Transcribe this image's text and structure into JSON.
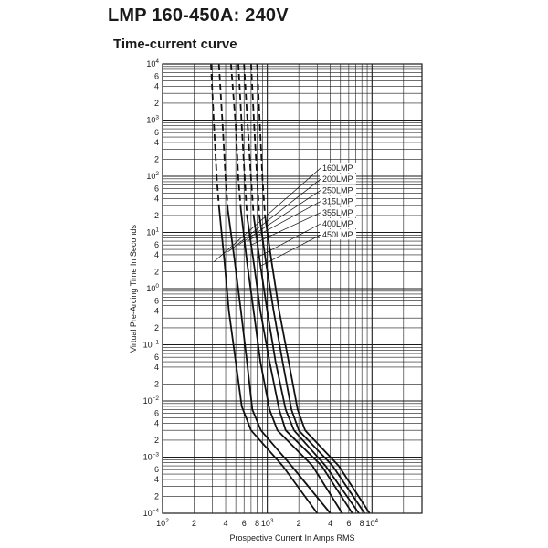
{
  "title": "LMP 160-450A: 240V",
  "subtitle": "Time-current curve",
  "chart_data": {
    "type": "line",
    "title": "LMP 160-450A: 240V",
    "subtitle": "Time-current curve",
    "xlabel": "Prospective Current In Amps RMS",
    "ylabel": "Virtual Pre-Arcing Time In Seconds",
    "x_scale": "log",
    "y_scale": "log",
    "xlim": [
      100,
      30000
    ],
    "ylim": [
      0.0001,
      10000
    ],
    "grid": true,
    "x_ticks": [
      {
        "value": 100,
        "base": "10",
        "exp": "2"
      },
      {
        "value": 200,
        "label": "2"
      },
      {
        "value": 400,
        "label": "4"
      },
      {
        "value": 600,
        "label": "6"
      },
      {
        "value": 800,
        "label": "8"
      },
      {
        "value": 1000,
        "base": "10",
        "exp": "3"
      },
      {
        "value": 2000,
        "label": "2"
      },
      {
        "value": 4000,
        "label": "4"
      },
      {
        "value": 6000,
        "label": "6"
      },
      {
        "value": 8000,
        "label": "8"
      },
      {
        "value": 10000,
        "base": "10",
        "exp": "4"
      }
    ],
    "y_ticks": [
      {
        "value": 0.0001,
        "base": "10",
        "exp": "−4"
      },
      {
        "value": 0.0002,
        "label": "2"
      },
      {
        "value": 0.0004,
        "label": "4"
      },
      {
        "value": 0.0006,
        "label": "6"
      },
      {
        "value": 0.001,
        "base": "10",
        "exp": "−3"
      },
      {
        "value": 0.002,
        "label": "2"
      },
      {
        "value": 0.004,
        "label": "4"
      },
      {
        "value": 0.006,
        "label": "6"
      },
      {
        "value": 0.01,
        "base": "10",
        "exp": "−2"
      },
      {
        "value": 0.02,
        "label": "2"
      },
      {
        "value": 0.04,
        "label": "4"
      },
      {
        "value": 0.06,
        "label": "6"
      },
      {
        "value": 0.1,
        "base": "10",
        "exp": "−1"
      },
      {
        "value": 0.2,
        "label": "2"
      },
      {
        "value": 0.4,
        "label": "4"
      },
      {
        "value": 0.6,
        "label": "6"
      },
      {
        "value": 1,
        "base": "10",
        "exp": "0"
      },
      {
        "value": 2,
        "label": "2"
      },
      {
        "value": 4,
        "label": "4"
      },
      {
        "value": 6,
        "label": "6"
      },
      {
        "value": 10,
        "base": "10",
        "exp": "1"
      },
      {
        "value": 20,
        "label": "2"
      },
      {
        "value": 40,
        "label": "4"
      },
      {
        "value": 60,
        "label": "6"
      },
      {
        "value": 100,
        "base": "10",
        "exp": "2"
      },
      {
        "value": 200,
        "label": "2"
      },
      {
        "value": 400,
        "label": "4"
      },
      {
        "value": 600,
        "label": "6"
      },
      {
        "value": 1000,
        "base": "10",
        "exp": "3"
      },
      {
        "value": 2000,
        "label": "2"
      },
      {
        "value": 4000,
        "label": "4"
      },
      {
        "value": 6000,
        "label": "6"
      },
      {
        "value": 10000,
        "base": "10",
        "exp": "4"
      }
    ],
    "series": [
      {
        "name": "160LMP",
        "dashed": [
          [
            290,
            10000
          ],
          [
            310,
            800
          ],
          [
            330,
            90
          ],
          [
            345,
            30
          ]
        ],
        "solid": [
          [
            345,
            30
          ],
          [
            390,
            3
          ],
          [
            430,
            0.4
          ],
          [
            500,
            0.05
          ],
          [
            570,
            0.008
          ],
          [
            700,
            0.003
          ],
          [
            1400,
            0.0007
          ],
          [
            3000,
            0.0001
          ]
        ]
      },
      {
        "name": "200LMP",
        "dashed": [
          [
            345,
            10000
          ],
          [
            375,
            800
          ],
          [
            400,
            90
          ],
          [
            420,
            25
          ]
        ],
        "solid": [
          [
            420,
            25
          ],
          [
            490,
            3
          ],
          [
            560,
            0.4
          ],
          [
            640,
            0.05
          ],
          [
            720,
            0.007
          ],
          [
            870,
            0.003
          ],
          [
            1700,
            0.0007
          ],
          [
            4000,
            0.0001
          ]
        ]
      },
      {
        "name": "250LMP",
        "dashed": [
          [
            450,
            10000
          ],
          [
            500,
            800
          ],
          [
            530,
            90
          ],
          [
            560,
            25
          ]
        ],
        "solid": [
          [
            560,
            25
          ],
          [
            640,
            3
          ],
          [
            740,
            0.4
          ],
          [
            860,
            0.05
          ],
          [
            1050,
            0.007
          ],
          [
            1250,
            0.003
          ],
          [
            2700,
            0.0007
          ],
          [
            5200,
            0.0001
          ]
        ]
      },
      {
        "name": "315LMP",
        "dashed": [
          [
            530,
            10000
          ],
          [
            570,
            800
          ],
          [
            610,
            90
          ],
          [
            640,
            20
          ]
        ],
        "solid": [
          [
            640,
            20
          ],
          [
            740,
            3
          ],
          [
            860,
            0.4
          ],
          [
            1050,
            0.05
          ],
          [
            1300,
            0.007
          ],
          [
            1500,
            0.003
          ],
          [
            3300,
            0.0007
          ],
          [
            6500,
            0.0001
          ]
        ]
      },
      {
        "name": "355LMP",
        "dashed": [
          [
            600,
            10000
          ],
          [
            650,
            800
          ],
          [
            700,
            90
          ],
          [
            740,
            20
          ]
        ],
        "solid": [
          [
            740,
            20
          ],
          [
            850,
            3
          ],
          [
            1000,
            0.4
          ],
          [
            1200,
            0.05
          ],
          [
            1500,
            0.007
          ],
          [
            1800,
            0.003
          ],
          [
            3600,
            0.0007
          ],
          [
            7500,
            0.0001
          ]
        ]
      },
      {
        "name": "400LMP",
        "dashed": [
          [
            700,
            10000
          ],
          [
            750,
            800
          ],
          [
            800,
            90
          ],
          [
            840,
            20
          ]
        ],
        "solid": [
          [
            840,
            20
          ],
          [
            970,
            3
          ],
          [
            1150,
            0.4
          ],
          [
            1400,
            0.05
          ],
          [
            1700,
            0.007
          ],
          [
            2000,
            0.003
          ],
          [
            4200,
            0.0007
          ],
          [
            8500,
            0.0001
          ]
        ]
      },
      {
        "name": "450LMP",
        "dashed": [
          [
            800,
            10000
          ],
          [
            850,
            800
          ],
          [
            900,
            90
          ],
          [
            950,
            20
          ]
        ],
        "solid": [
          [
            950,
            20
          ],
          [
            1100,
            3
          ],
          [
            1300,
            0.4
          ],
          [
            1600,
            0.05
          ],
          [
            1950,
            0.007
          ],
          [
            2300,
            0.003
          ],
          [
            4800,
            0.0007
          ],
          [
            9500,
            0.0001
          ]
        ]
      }
    ],
    "annotations": [
      {
        "text": "160LMP",
        "points_to": [
          310,
          3
        ]
      },
      {
        "text": "200LMP",
        "points_to": [
          420,
          4.5
        ]
      },
      {
        "text": "250LMP",
        "points_to": [
          530,
          6
        ]
      },
      {
        "text": "315LMP",
        "points_to": [
          640,
          7
        ]
      },
      {
        "text": "355LMP",
        "points_to": [
          700,
          6
        ]
      },
      {
        "text": "400LMP",
        "points_to": [
          780,
          3.5
        ]
      },
      {
        "text": "450LMP",
        "points_to": [
          850,
          2.5
        ]
      }
    ]
  }
}
